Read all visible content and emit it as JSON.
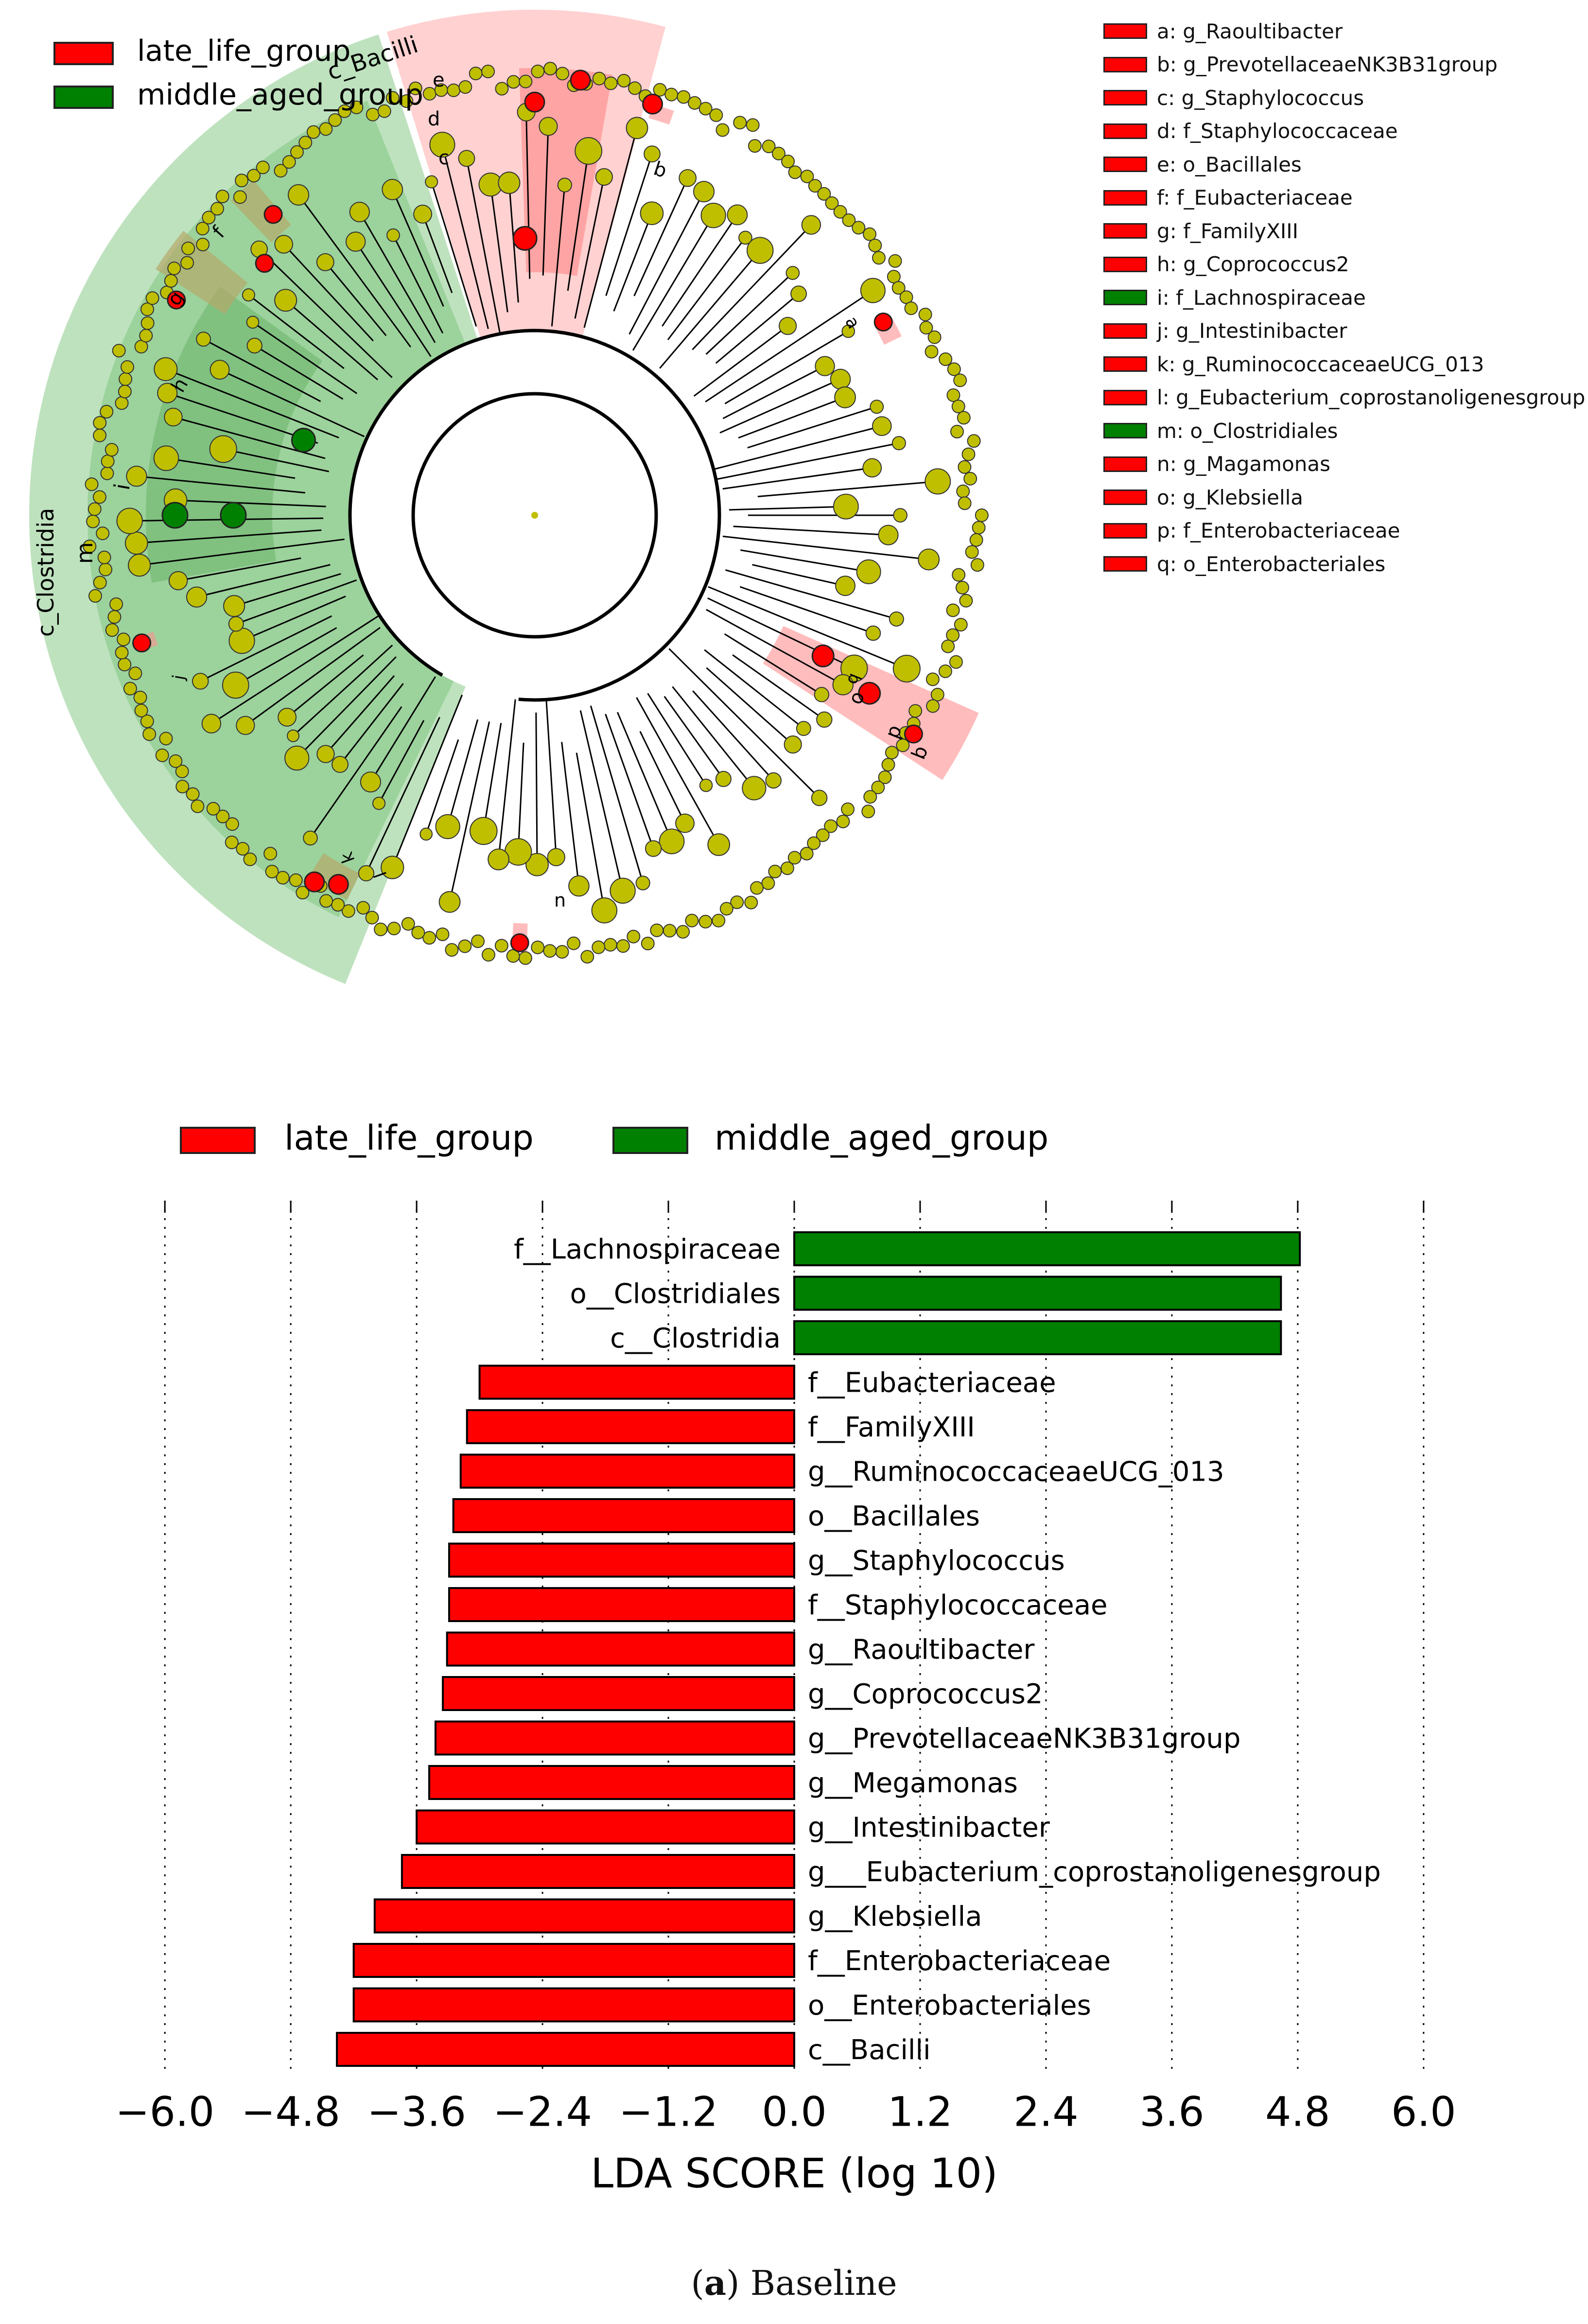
{
  "colors": {
    "late": "#ff0000",
    "middle": "#008000",
    "node": "#bfbf00"
  },
  "cladogram": {
    "legend": [
      {
        "label": "late_life_group",
        "color": "#ff0000"
      },
      {
        "label": "middle_aged_group",
        "color": "#008000"
      }
    ],
    "key": [
      {
        "text": "a: g_Raoultibacter",
        "color": "#ff0000"
      },
      {
        "text": "b: g_PrevotellaceaeNK3B31group",
        "color": "#ff0000"
      },
      {
        "text": "c: g_Staphylococcus",
        "color": "#ff0000"
      },
      {
        "text": "d: f_Staphylococcaceae",
        "color": "#ff0000"
      },
      {
        "text": "e: o_Bacillales",
        "color": "#ff0000"
      },
      {
        "text": "f: f_Eubacteriaceae",
        "color": "#ff0000"
      },
      {
        "text": "g: f_FamilyXIII",
        "color": "#ff0000"
      },
      {
        "text": "h: g_Coprococcus2",
        "color": "#ff0000"
      },
      {
        "text": "i: f_Lachnospiraceae",
        "color": "#008000"
      },
      {
        "text": "j: g_Intestinibacter",
        "color": "#ff0000"
      },
      {
        "text": "k: g_RuminococcaceaeUCG_013",
        "color": "#ff0000"
      },
      {
        "text": "l: g_Eubacterium_coprostanoligenesgroup",
        "color": "#ff0000"
      },
      {
        "text": "m: o_Clostridiales",
        "color": "#008000"
      },
      {
        "text": "n: g_Magamonas",
        "color": "#ff0000"
      },
      {
        "text": "o: g_Klebsiella",
        "color": "#ff0000"
      },
      {
        "text": "p: f_Enterobacteriaceae",
        "color": "#ff0000"
      },
      {
        "text": "q: o_Enterobacteriales",
        "color": "#ff0000"
      }
    ],
    "sector_labels": {
      "bacilli": "c_Bacilli",
      "clostridia": "c_Clostridia",
      "m": "m",
      "i": "i",
      "h": "h",
      "g": "g",
      "f": "f",
      "e": "e",
      "d": "d",
      "c": "c",
      "b_top": "b",
      "a": "a",
      "o": "o",
      "p": "p",
      "q": "q",
      "b_right": "b",
      "k": "k",
      "l": "l",
      "j": "j",
      "n": "n"
    }
  },
  "chart_data": {
    "type": "bar",
    "orientation": "horizontal",
    "legend": [
      {
        "label": "late_life_group",
        "color": "#ff0000"
      },
      {
        "label": "middle_aged_group",
        "color": "#008000"
      }
    ],
    "categories": [
      "f__Lachnospiraceae",
      "o__Clostridiales",
      "c__Clostridia",
      "f__Eubacteriaceae",
      "f__FamilyXIII",
      "g__RuminococcaceaeUCG_013",
      "o__Bacillales",
      "g__Staphylococcus",
      "f__Staphylococcaceae",
      "g__Raoultibacter",
      "g__Coprococcus2",
      "g__PrevotellaceaeNK3B31group",
      "g__Megamonas",
      "g__Intestinibacter",
      "g___Eubacterium_coprostanoligenesgroup",
      "g__Klebsiella",
      "f__Enterobacteriaceae",
      "o__Enterobacteriales",
      "c__Bacilli"
    ],
    "values": [
      4.82,
      4.64,
      4.64,
      -3.0,
      -3.12,
      -3.18,
      -3.25,
      -3.29,
      -3.29,
      -3.31,
      -3.35,
      -3.42,
      -3.48,
      -3.6,
      -3.74,
      -4.0,
      -4.2,
      -4.2,
      -4.36
    ],
    "groups": [
      "middle_aged_group",
      "middle_aged_group",
      "middle_aged_group",
      "late_life_group",
      "late_life_group",
      "late_life_group",
      "late_life_group",
      "late_life_group",
      "late_life_group",
      "late_life_group",
      "late_life_group",
      "late_life_group",
      "late_life_group",
      "late_life_group",
      "late_life_group",
      "late_life_group",
      "late_life_group",
      "late_life_group",
      "late_life_group"
    ],
    "xlim": [
      -6.0,
      6.0
    ],
    "xticks": [
      -6.0,
      -4.8,
      -3.6,
      -2.4,
      -1.2,
      0.0,
      1.2,
      2.4,
      3.6,
      4.8,
      6.0
    ],
    "xtick_labels": [
      "−6.0",
      "−4.8",
      "−3.6",
      "−2.4",
      "−1.2",
      "0.0",
      "1.2",
      "2.4",
      "3.6",
      "4.8",
      "6.0"
    ],
    "xlabel": "LDA SCORE (log 10)",
    "grid": "vertical dotted"
  },
  "caption": {
    "letter": "a",
    "text": " Baseline"
  }
}
